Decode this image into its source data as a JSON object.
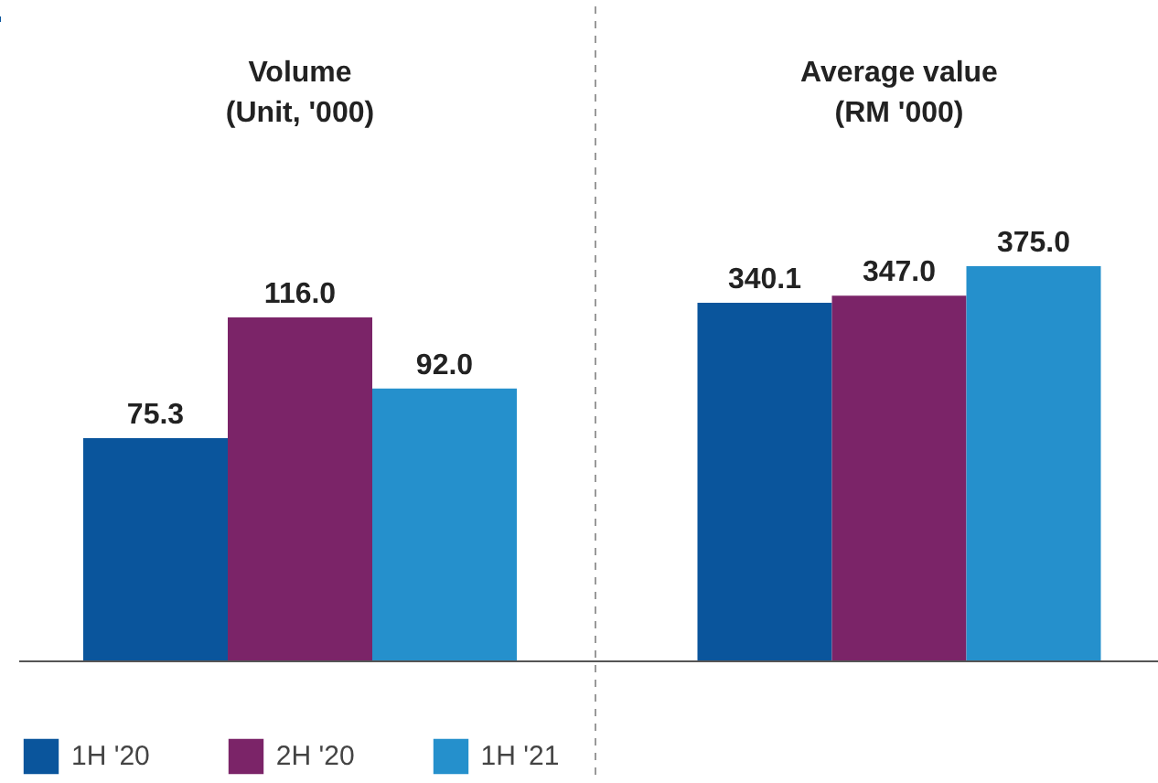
{
  "chart_data": [
    {
      "type": "bar",
      "title": "Volume\n(Unit, '000)",
      "categories": [
        null
      ],
      "legend": "bottom",
      "series": [
        {
          "name": "1H '20",
          "color": "#0a559c",
          "values": [
            75.3
          ],
          "value_labels": [
            "75.3"
          ]
        },
        {
          "name": "2H '20",
          "color": "#7b2468",
          "values": [
            116.0
          ],
          "value_labels": [
            "116.0"
          ]
        },
        {
          "name": "1H '21",
          "color": "#2590cc",
          "values": [
            92.0
          ],
          "value_labels": [
            "92.0"
          ]
        }
      ]
    },
    {
      "type": "bar",
      "title": "Average value\n(RM '000)",
      "categories": [
        null
      ],
      "series": [
        {
          "color": "#0a559c",
          "values": [
            340.1
          ],
          "value_labels": [
            "340.1"
          ]
        },
        {
          "color": "#7b2468",
          "values": [
            347.0
          ],
          "value_labels": [
            "347.0"
          ]
        },
        {
          "color": "#2590cc",
          "values": [
            375.0
          ],
          "value_labels": [
            "375.0"
          ]
        }
      ]
    }
  ]
}
